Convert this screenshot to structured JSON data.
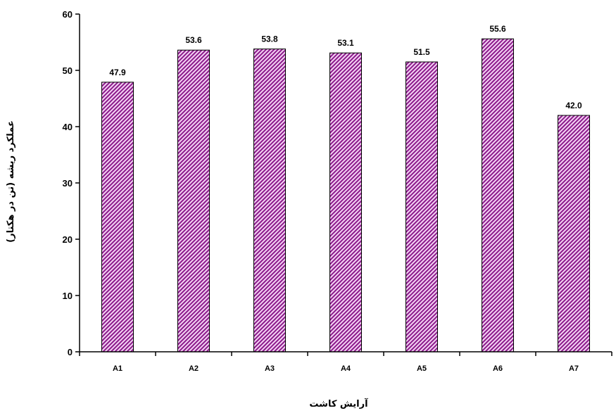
{
  "chart_data": {
    "type": "bar",
    "title": "",
    "xlabel": "آرایش کاشت",
    "ylabel": "عملکرد ریشه (تن در هکتار)",
    "categories": [
      "A1",
      "A2",
      "A3",
      "A4",
      "A5",
      "A6",
      "A7"
    ],
    "values": [
      47.9,
      53.6,
      53.8,
      53.1,
      51.5,
      55.6,
      42.0
    ],
    "data_labels": [
      "47.9",
      "53.6",
      "53.8",
      "53.1",
      "51.5",
      "55.6",
      "42.0"
    ],
    "ylim": [
      0,
      60
    ],
    "yticks": [
      0,
      10,
      20,
      30,
      40,
      50,
      60
    ],
    "grid": false,
    "legend": "none",
    "colors": {
      "bar_stripe": "#8B1A8B",
      "bar_background": "#F4D2F4",
      "axis": "#000000"
    }
  }
}
